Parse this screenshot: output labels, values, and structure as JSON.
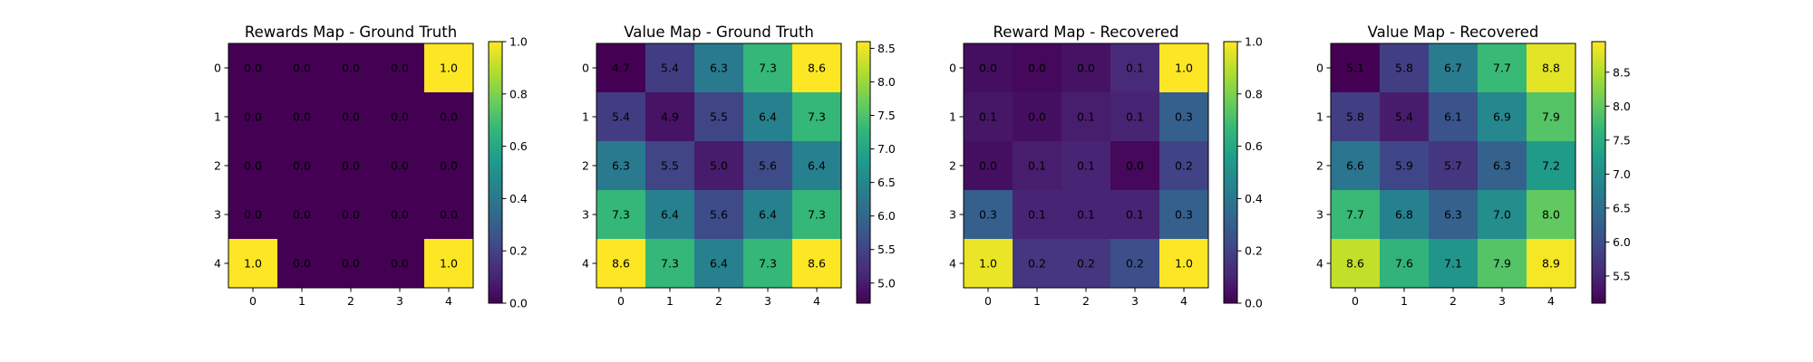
{
  "chart_data": [
    {
      "type": "heatmap",
      "title": "Rewards Map - Ground Truth",
      "x_ticks": [
        "0",
        "1",
        "2",
        "3",
        "4"
      ],
      "y_ticks": [
        "0",
        "1",
        "2",
        "3",
        "4"
      ],
      "values": [
        [
          0.0,
          0.0,
          0.0,
          0.0,
          1.0
        ],
        [
          0.0,
          0.0,
          0.0,
          0.0,
          0.0
        ],
        [
          0.0,
          0.0,
          0.0,
          0.0,
          0.0
        ],
        [
          0.0,
          0.0,
          0.0,
          0.0,
          0.0
        ],
        [
          1.0,
          0.0,
          0.0,
          0.0,
          1.0
        ]
      ],
      "labels": [
        [
          "0.0",
          "0.0",
          "0.0",
          "0.0",
          "1.0"
        ],
        [
          "0.0",
          "0.0",
          "0.0",
          "0.0",
          "0.0"
        ],
        [
          "0.0",
          "0.0",
          "0.0",
          "0.0",
          "0.0"
        ],
        [
          "0.0",
          "0.0",
          "0.0",
          "0.0",
          "0.0"
        ],
        [
          "1.0",
          "0.0",
          "0.0",
          "0.0",
          "1.0"
        ]
      ],
      "vmin": 0.0,
      "vmax": 1.0,
      "colorbar_ticks": [
        "0.0",
        "0.2",
        "0.4",
        "0.6",
        "0.8",
        "1.0"
      ],
      "colormap": "viridis"
    },
    {
      "type": "heatmap",
      "title": "Value Map - Ground Truth",
      "x_ticks": [
        "0",
        "1",
        "2",
        "3",
        "4"
      ],
      "y_ticks": [
        "0",
        "1",
        "2",
        "3",
        "4"
      ],
      "values": [
        [
          4.7,
          5.4,
          6.3,
          7.3,
          8.6
        ],
        [
          5.4,
          4.9,
          5.5,
          6.4,
          7.3
        ],
        [
          6.3,
          5.5,
          5.0,
          5.6,
          6.4
        ],
        [
          7.3,
          6.4,
          5.6,
          6.4,
          7.3
        ],
        [
          8.6,
          7.3,
          6.4,
          7.3,
          8.6
        ]
      ],
      "labels": [
        [
          "4.7",
          "5.4",
          "6.3",
          "7.3",
          "8.6"
        ],
        [
          "5.4",
          "4.9",
          "5.5",
          "6.4",
          "7.3"
        ],
        [
          "6.3",
          "5.5",
          "5.0",
          "5.6",
          "6.4"
        ],
        [
          "7.3",
          "6.4",
          "5.6",
          "6.4",
          "7.3"
        ],
        [
          "8.6",
          "7.3",
          "6.4",
          "7.3",
          "8.6"
        ]
      ],
      "vmin": 4.7,
      "vmax": 8.6,
      "colorbar_ticks": [
        "5.0",
        "5.5",
        "6.0",
        "6.5",
        "7.0",
        "7.5",
        "8.0",
        "8.5"
      ],
      "colormap": "viridis"
    },
    {
      "type": "heatmap",
      "title": "Reward Map - Recovered",
      "x_ticks": [
        "0",
        "1",
        "2",
        "3",
        "4"
      ],
      "y_ticks": [
        "0",
        "1",
        "2",
        "3",
        "4"
      ],
      "values": [
        [
          0.04,
          0.02,
          0.05,
          0.12,
          1.0
        ],
        [
          0.06,
          0.04,
          0.08,
          0.1,
          0.3
        ],
        [
          0.04,
          0.08,
          0.1,
          0.02,
          0.2
        ],
        [
          0.3,
          0.1,
          0.1,
          0.1,
          0.3
        ],
        [
          0.97,
          0.16,
          0.16,
          0.24,
          1.0
        ]
      ],
      "labels": [
        [
          "0.0",
          "0.0",
          "0.0",
          "0.1",
          "1.0"
        ],
        [
          "0.1",
          "0.0",
          "0.1",
          "0.1",
          "0.3"
        ],
        [
          "0.0",
          "0.1",
          "0.1",
          "0.0",
          "0.2"
        ],
        [
          "0.3",
          "0.1",
          "0.1",
          "0.1",
          "0.3"
        ],
        [
          "1.0",
          "0.2",
          "0.2",
          "0.2",
          "1.0"
        ]
      ],
      "vmin": 0.0,
      "vmax": 1.0,
      "colorbar_ticks": [
        "0.0",
        "0.2",
        "0.4",
        "0.6",
        "0.8",
        "1.0"
      ],
      "colormap": "viridis"
    },
    {
      "type": "heatmap",
      "title": "Value Map - Recovered",
      "x_ticks": [
        "0",
        "1",
        "2",
        "3",
        "4"
      ],
      "y_ticks": [
        "0",
        "1",
        "2",
        "3",
        "4"
      ],
      "values": [
        [
          5.1,
          5.8,
          6.7,
          7.7,
          8.8
        ],
        [
          5.8,
          5.4,
          6.1,
          6.9,
          7.9
        ],
        [
          6.6,
          5.9,
          5.7,
          6.3,
          7.2
        ],
        [
          7.7,
          6.8,
          6.3,
          7.0,
          8.0
        ],
        [
          8.6,
          7.6,
          7.1,
          7.9,
          8.9
        ]
      ],
      "labels": [
        [
          "5.1",
          "5.8",
          "6.7",
          "7.7",
          "8.8"
        ],
        [
          "5.8",
          "5.4",
          "6.1",
          "6.9",
          "7.9"
        ],
        [
          "6.6",
          "5.9",
          "5.7",
          "6.3",
          "7.2"
        ],
        [
          "7.7",
          "6.8",
          "6.3",
          "7.0",
          "8.0"
        ],
        [
          "8.6",
          "7.6",
          "7.1",
          "7.9",
          "8.9"
        ]
      ],
      "vmin": 5.1,
      "vmax": 8.95,
      "colorbar_ticks": [
        "5.5",
        "6.0",
        "6.5",
        "7.0",
        "7.5",
        "8.0",
        "8.5"
      ],
      "colormap": "viridis"
    }
  ]
}
